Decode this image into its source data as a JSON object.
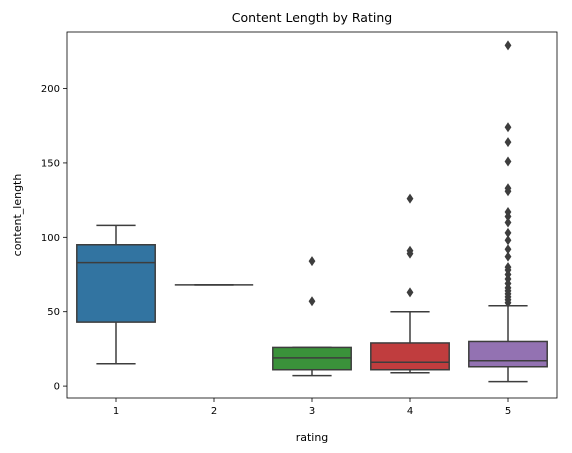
{
  "chart_data": {
    "type": "box",
    "title": "Content Length by Rating",
    "xlabel": "rating",
    "ylabel": "content_length",
    "ylim": [
      -8,
      238
    ],
    "yticks": [
      0,
      50,
      100,
      150,
      200
    ],
    "grid": false,
    "legend": "none",
    "categories": [
      "1",
      "2",
      "3",
      "4",
      "5"
    ],
    "boxes": [
      {
        "category": "1",
        "color": "#3274a1",
        "whisker_low": 15,
        "q1": 43,
        "median": 83,
        "q3": 95,
        "whisker_high": 108,
        "outliers": []
      },
      {
        "category": "2",
        "color": "#e1812c",
        "whisker_low": 68,
        "q1": 68,
        "median": 68,
        "q3": 68,
        "whisker_high": 68,
        "outliers": []
      },
      {
        "category": "3",
        "color": "#3a923a",
        "whisker_low": 7,
        "q1": 11,
        "median": 19,
        "q3": 26,
        "whisker_high": 26,
        "outliers": [
          57,
          84
        ]
      },
      {
        "category": "4",
        "color": "#c03d3e",
        "whisker_low": 9,
        "q1": 11,
        "median": 16,
        "q3": 29,
        "whisker_high": 50,
        "outliers": [
          63,
          89,
          91,
          126
        ]
      },
      {
        "category": "5",
        "color": "#9372b2",
        "whisker_low": 3,
        "q1": 13,
        "median": 17,
        "q3": 30,
        "whisker_high": 54,
        "outliers": [
          56,
          58,
          60,
          62,
          64,
          66,
          69,
          72,
          75,
          78,
          80,
          87,
          92,
          98,
          103,
          110,
          114,
          117,
          131,
          133,
          151,
          164,
          174,
          229
        ]
      }
    ]
  }
}
